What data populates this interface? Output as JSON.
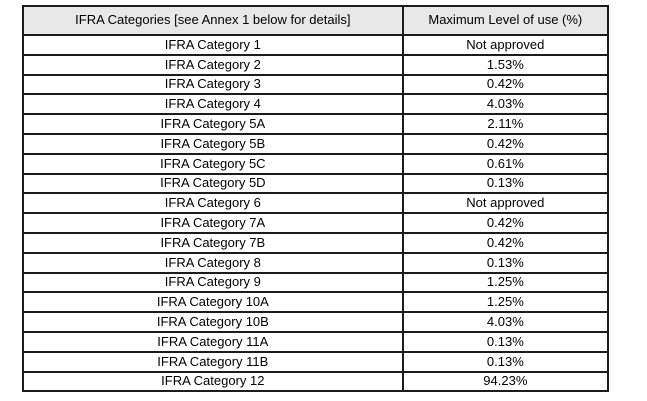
{
  "colors": {
    "header_bg": "#e8e8e8",
    "border": "#1c1c1c",
    "text": "#000000"
  },
  "table": {
    "headers": [
      "IFRA Categories [see Annex 1 below for details]",
      "Maximum Level of use (%)"
    ],
    "rows": [
      {
        "category": "IFRA Category 1",
        "max_level": "Not approved"
      },
      {
        "category": "IFRA Category 2",
        "max_level": "1.53%"
      },
      {
        "category": "IFRA Category 3",
        "max_level": "0.42%"
      },
      {
        "category": "IFRA Category 4",
        "max_level": "4.03%"
      },
      {
        "category": "IFRA Category 5A",
        "max_level": "2.11%"
      },
      {
        "category": "IFRA Category 5B",
        "max_level": "0.42%"
      },
      {
        "category": "IFRA Category 5C",
        "max_level": "0.61%"
      },
      {
        "category": "IFRA Category 5D",
        "max_level": "0.13%"
      },
      {
        "category": "IFRA Category 6",
        "max_level": "Not approved"
      },
      {
        "category": "IFRA Category 7A",
        "max_level": "0.42%"
      },
      {
        "category": "IFRA Category 7B",
        "max_level": "0.42%"
      },
      {
        "category": "IFRA Category 8",
        "max_level": "0.13%"
      },
      {
        "category": "IFRA Category 9",
        "max_level": "1.25%"
      },
      {
        "category": "IFRA Category 10A",
        "max_level": "1.25%"
      },
      {
        "category": "IFRA Category 10B",
        "max_level": "4.03%"
      },
      {
        "category": "IFRA Category 11A",
        "max_level": "0.13%"
      },
      {
        "category": "IFRA Category 11B",
        "max_level": "0.13%"
      },
      {
        "category": "IFRA Category 12",
        "max_level": "94.23%"
      }
    ]
  }
}
